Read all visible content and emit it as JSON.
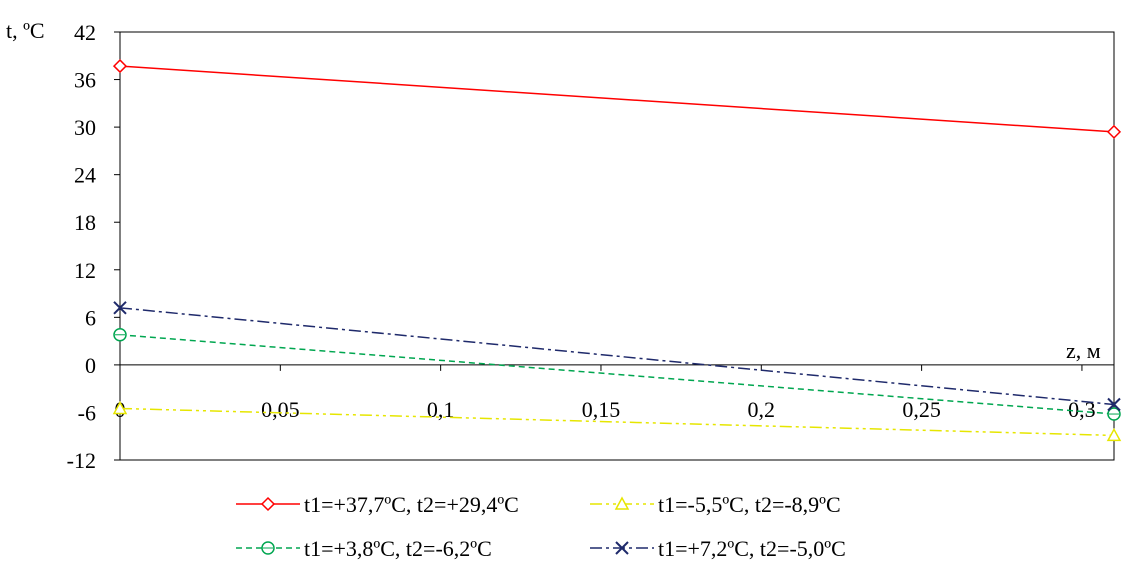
{
  "chart_data": {
    "type": "line",
    "title": "",
    "ylabel": "t, ºC",
    "xlabel": "z, м",
    "xlim": [
      0,
      0.31
    ],
    "ylim": [
      -12,
      42
    ],
    "x_ticks": [
      "0",
      "0,05",
      "0,1",
      "0,15",
      "0,2",
      "0,25",
      "0,3"
    ],
    "x_tick_values": [
      0,
      0.05,
      0.1,
      0.15,
      0.2,
      0.25,
      0.3
    ],
    "y_ticks": [
      "-12",
      "-6",
      "0",
      "6",
      "12",
      "18",
      "24",
      "30",
      "36",
      "42"
    ],
    "y_tick_values": [
      -12,
      -6,
      0,
      6,
      12,
      18,
      24,
      30,
      36,
      42
    ],
    "grid": false,
    "legend_position": "bottom",
    "series": [
      {
        "name": "t1=+37,7ºC, t2=+29,4ºC",
        "x": [
          0,
          0.31
        ],
        "y": [
          37.7,
          29.4
        ],
        "color": "#ff0000",
        "dash": "solid",
        "marker": "diamond"
      },
      {
        "name": "t1=-5,5ºC, t2=-8,9ºC",
        "x": [
          0,
          0.31
        ],
        "y": [
          -5.5,
          -8.9
        ],
        "color": "#e6e600",
        "dash": "dashdotdot",
        "marker": "triangle"
      },
      {
        "name": "t1=+3,8ºC, t2=-6,2ºC",
        "x": [
          0,
          0.31
        ],
        "y": [
          3.8,
          -6.2
        ],
        "color": "#00a650",
        "dash": "dashed",
        "marker": "circle"
      },
      {
        "name": "t1=+7,2ºC, t2=-5,0ºC",
        "x": [
          0,
          0.31
        ],
        "y": [
          7.2,
          -5.0
        ],
        "color": "#1f2a6b",
        "dash": "dashdot",
        "marker": "x"
      }
    ]
  }
}
